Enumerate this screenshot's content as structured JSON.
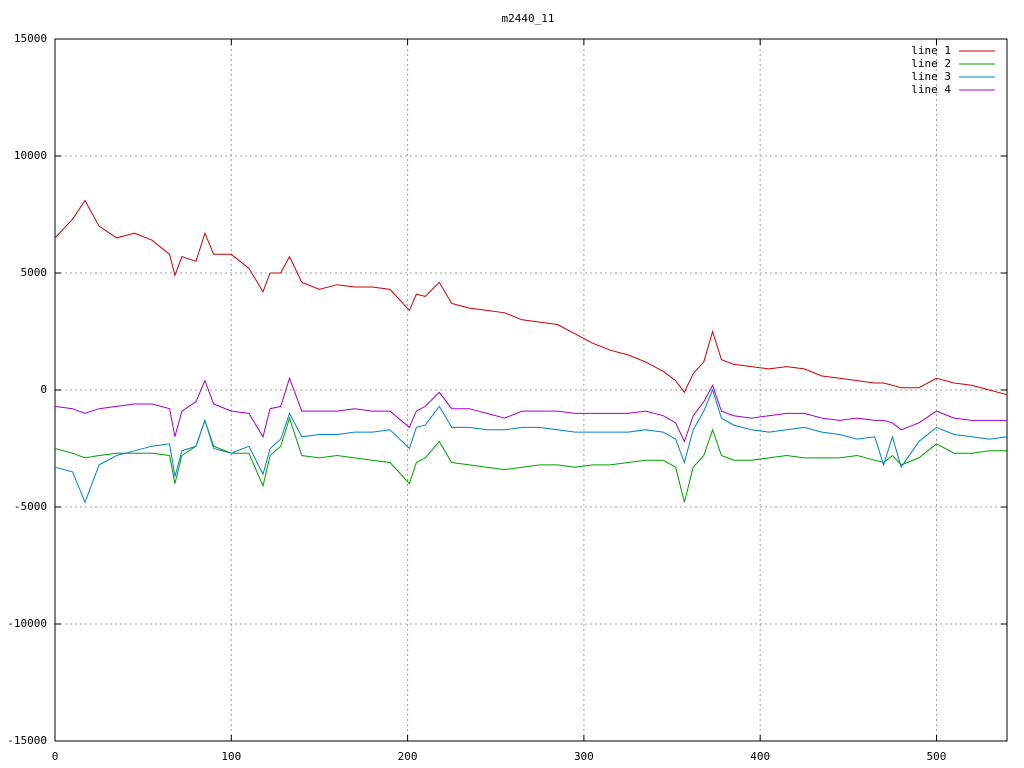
{
  "chart_data": {
    "type": "line",
    "title": "m2440_11",
    "x": [
      0,
      10,
      17,
      25,
      35,
      45,
      55,
      65,
      68,
      72,
      80,
      85,
      90,
      100,
      110,
      118,
      122,
      128,
      133,
      140,
      150,
      160,
      170,
      180,
      190,
      201,
      205,
      210,
      218,
      225,
      235,
      245,
      255,
      265,
      275,
      285,
      295,
      305,
      315,
      325,
      335,
      345,
      352,
      357,
      362,
      368,
      373,
      378,
      385,
      395,
      405,
      415,
      425,
      435,
      445,
      455,
      465,
      470,
      475,
      480,
      490,
      500,
      510,
      520,
      530,
      540
    ],
    "series": [
      {
        "name": "line 1",
        "color": "#d00000",
        "values": [
          6500,
          7300,
          8100,
          7000,
          6500,
          6700,
          6400,
          5800,
          4900,
          5700,
          5500,
          6700,
          5800,
          5800,
          5200,
          4200,
          5000,
          5000,
          5700,
          4600,
          4300,
          4500,
          4400,
          4400,
          4300,
          3400,
          4100,
          4000,
          4600,
          3700,
          3500,
          3400,
          3300,
          3000,
          2900,
          2800,
          2400,
          2000,
          1700,
          1500,
          1200,
          800,
          400,
          -100,
          700,
          1200,
          2500,
          1300,
          1100,
          1000,
          900,
          1000,
          900,
          600,
          500,
          400,
          300,
          300,
          200,
          100,
          100,
          500,
          300,
          200,
          0,
          -200
        ]
      },
      {
        "name": "line 2",
        "color": "#00a000",
        "values": [
          -2500,
          -2700,
          -2900,
          -2800,
          -2700,
          -2700,
          -2700,
          -2800,
          -4000,
          -2800,
          -2400,
          -1300,
          -2400,
          -2700,
          -2700,
          -4100,
          -2800,
          -2400,
          -1200,
          -2800,
          -2900,
          -2800,
          -2900,
          -3000,
          -3100,
          -4000,
          -3100,
          -2900,
          -2200,
          -3100,
          -3200,
          -3300,
          -3400,
          -3300,
          -3200,
          -3200,
          -3300,
          -3200,
          -3200,
          -3100,
          -3000,
          -3000,
          -3300,
          -4800,
          -3300,
          -2800,
          -1700,
          -2800,
          -3000,
          -3000,
          -2900,
          -2800,
          -2900,
          -2900,
          -2900,
          -2800,
          -3000,
          -3100,
          -2800,
          -3200,
          -2900,
          -2300,
          -2700,
          -2700,
          -2600,
          -2600
        ]
      },
      {
        "name": "line 3",
        "color": "#0080c8",
        "values": [
          -3300,
          -3500,
          -4800,
          -3200,
          -2800,
          -2600,
          -2400,
          -2300,
          -3700,
          -2600,
          -2400,
          -1300,
          -2500,
          -2700,
          -2400,
          -3600,
          -2500,
          -2100,
          -1000,
          -2000,
          -1900,
          -1900,
          -1800,
          -1800,
          -1700,
          -2500,
          -1600,
          -1500,
          -700,
          -1600,
          -1600,
          -1700,
          -1700,
          -1600,
          -1600,
          -1700,
          -1800,
          -1800,
          -1800,
          -1800,
          -1700,
          -1800,
          -2100,
          -3100,
          -1700,
          -900,
          0,
          -1200,
          -1500,
          -1700,
          -1800,
          -1700,
          -1600,
          -1800,
          -1900,
          -2100,
          -2000,
          -3200,
          -2000,
          -3300,
          -2200,
          -1600,
          -1900,
          -2000,
          -2100,
          -2000
        ]
      },
      {
        "name": "line 4",
        "color": "#a000d0",
        "values": [
          -700,
          -800,
          -1000,
          -800,
          -700,
          -600,
          -600,
          -800,
          -2000,
          -900,
          -500,
          400,
          -600,
          -900,
          -1000,
          -2000,
          -800,
          -700,
          500,
          -900,
          -900,
          -900,
          -800,
          -900,
          -900,
          -1600,
          -900,
          -700,
          -100,
          -800,
          -800,
          -1000,
          -1200,
          -900,
          -900,
          -900,
          -1000,
          -1000,
          -1000,
          -1000,
          -900,
          -1100,
          -1400,
          -2200,
          -1100,
          -500,
          200,
          -900,
          -1100,
          -1200,
          -1100,
          -1000,
          -1000,
          -1200,
          -1300,
          -1200,
          -1300,
          -1300,
          -1400,
          -1700,
          -1400,
          -900,
          -1200,
          -1300,
          -1300,
          -1300
        ]
      }
    ],
    "xlim": [
      0,
      540
    ],
    "xticks": [
      0,
      100,
      200,
      300,
      400,
      500
    ],
    "ylim": [
      -15000,
      15000
    ],
    "yticks": [
      -15000,
      -10000,
      -5000,
      0,
      5000,
      10000,
      15000
    ],
    "grid": true,
    "legend": "top-right"
  }
}
